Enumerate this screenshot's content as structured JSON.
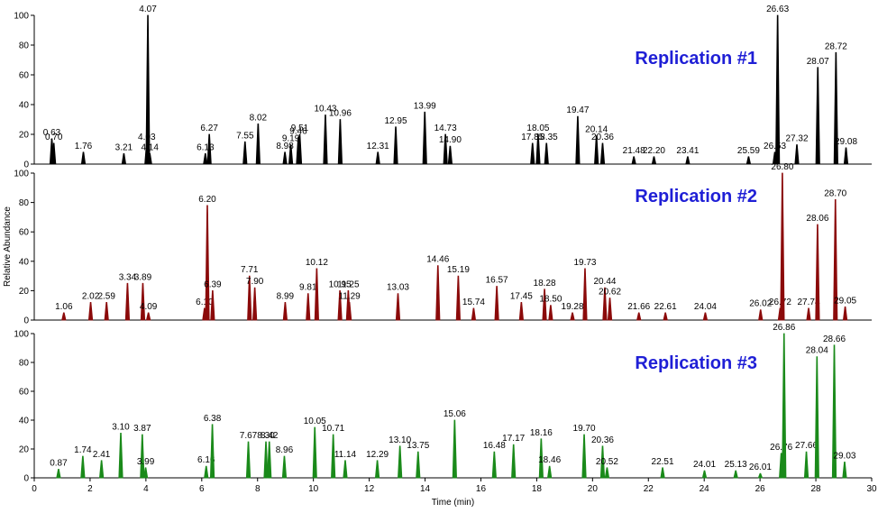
{
  "chart_data": [
    {
      "type": "line",
      "title": "Replication #1",
      "color": "#000000",
      "x": [
        0.63,
        0.7,
        1.76,
        3.21,
        4.03,
        4.07,
        4.14,
        6.13,
        6.27,
        7.55,
        8.02,
        8.98,
        9.19,
        9.46,
        9.51,
        10.43,
        10.96,
        12.31,
        12.95,
        13.99,
        14.73,
        14.9,
        17.85,
        18.05,
        18.35,
        19.47,
        20.14,
        20.36,
        21.48,
        22.2,
        23.41,
        25.59,
        26.53,
        26.63,
        27.32,
        28.07,
        28.72,
        29.08
      ],
      "x_labels": [
        "0.63",
        "0.70",
        "1.76",
        "3.21",
        "4.03",
        "4.07",
        "4.14",
        "6.13",
        "6.27",
        "7.55",
        "8.02",
        "8.98",
        "9.19",
        "9.46",
        "9.51",
        "10.43",
        "10.96",
        "12.31",
        "12.95",
        "13.99",
        "14.73",
        "14.90",
        "17.85",
        "18.05",
        "18.35",
        "19.47",
        "20.14",
        "20.36",
        "21.48",
        "22.20",
        "23.41",
        "25.59",
        "26.53",
        "26.63",
        "27.32",
        "28.07",
        "28.72",
        "29.08"
      ],
      "values": [
        17,
        14,
        8,
        7,
        14,
        100,
        7,
        7,
        20,
        15,
        27,
        8,
        13,
        18,
        20,
        33,
        30,
        8,
        25,
        35,
        20,
        12,
        14,
        20,
        14,
        32,
        19,
        14,
        5,
        5,
        5,
        5,
        8,
        100,
        13,
        65,
        75,
        11
      ],
      "xlim": [
        0,
        30
      ],
      "ylim": [
        0,
        100
      ],
      "yticks": [
        0,
        20,
        40,
        60,
        80,
        100
      ]
    },
    {
      "type": "line",
      "title": "Replication #2",
      "color": "#8b0a0a",
      "ylabel": "Relative Abundance",
      "x": [
        1.06,
        2.02,
        2.59,
        3.34,
        3.89,
        4.09,
        6.1,
        6.2,
        6.39,
        7.71,
        7.9,
        8.99,
        9.81,
        10.12,
        10.95,
        11.25,
        11.29,
        13.03,
        14.46,
        15.19,
        15.74,
        16.57,
        17.45,
        18.28,
        18.5,
        19.28,
        19.73,
        20.44,
        20.62,
        21.66,
        22.61,
        24.04,
        26.02,
        26.72,
        26.8,
        27.74,
        28.06,
        28.7,
        29.05
      ],
      "x_labels": [
        "1.06",
        "2.02",
        "2.59",
        "3.34",
        "3.89",
        "4.09",
        "6.10",
        "6.20",
        "6.39",
        "7.71",
        "7.90",
        "8.99",
        "9.81",
        "10.12",
        "10.95",
        "11.25",
        "11.29",
        "13.03",
        "14.46",
        "15.19",
        "15.74",
        "16.57",
        "17.45",
        "18.28",
        "18.50",
        "19.28",
        "19.73",
        "20.44",
        "20.62",
        "21.66",
        "22.61",
        "24.04",
        "26.02",
        "26.72",
        "26.80",
        "27.74",
        "28.06",
        "28.70",
        "29.05"
      ],
      "values": [
        5,
        12,
        12,
        25,
        25,
        5,
        8,
        78,
        20,
        30,
        22,
        12,
        18,
        35,
        20,
        20,
        12,
        18,
        37,
        30,
        8,
        23,
        12,
        21,
        10,
        5,
        35,
        22,
        15,
        5,
        5,
        5,
        7,
        8,
        100,
        8,
        65,
        82,
        9
      ],
      "xlim": [
        0,
        30
      ],
      "ylim": [
        0,
        100
      ],
      "yticks": [
        0,
        20,
        40,
        60,
        80,
        100
      ]
    },
    {
      "type": "line",
      "title": "Replication #3",
      "color": "#1a8a1a",
      "xlabel": "Time (min)",
      "x": [
        0.87,
        1.74,
        2.41,
        3.1,
        3.87,
        3.99,
        6.16,
        6.38,
        7.67,
        8.3,
        8.42,
        8.96,
        10.05,
        10.71,
        11.14,
        12.29,
        13.1,
        13.75,
        15.06,
        16.48,
        17.17,
        18.16,
        18.46,
        19.7,
        20.36,
        20.52,
        22.51,
        24.01,
        25.13,
        26.01,
        26.76,
        26.86,
        27.66,
        28.04,
        28.66,
        29.03
      ],
      "x_labels": [
        "0.87",
        "1.74",
        "2.41",
        "3.10",
        "3.87",
        "3.99",
        "6.16",
        "6.38",
        "7.67",
        "8.30",
        "8.42",
        "8.96",
        "10.05",
        "10.71",
        "11.14",
        "12.29",
        "13.10",
        "13.75",
        "15.06",
        "16.48",
        "17.17",
        "18.16",
        "18.46",
        "19.70",
        "20.36",
        "20.52",
        "22.51",
        "24.01",
        "25.13",
        "26.01",
        "26.76",
        "26.86",
        "27.66",
        "28.04",
        "28.66",
        "29.03"
      ],
      "values": [
        6,
        15,
        12,
        31,
        30,
        7,
        8,
        37,
        25,
        25,
        25,
        15,
        35,
        30,
        12,
        12,
        22,
        18,
        40,
        18,
        23,
        27,
        8,
        30,
        22,
        7,
        7,
        5,
        5,
        3,
        17,
        100,
        18,
        84,
        92,
        11
      ],
      "xlim": [
        0,
        30
      ],
      "ylim": [
        0,
        100
      ],
      "yticks": [
        0,
        20,
        40,
        60,
        80,
        100
      ],
      "xticks": [
        0,
        2,
        4,
        6,
        8,
        10,
        12,
        14,
        16,
        18,
        20,
        22,
        24,
        26,
        28,
        30
      ]
    }
  ]
}
